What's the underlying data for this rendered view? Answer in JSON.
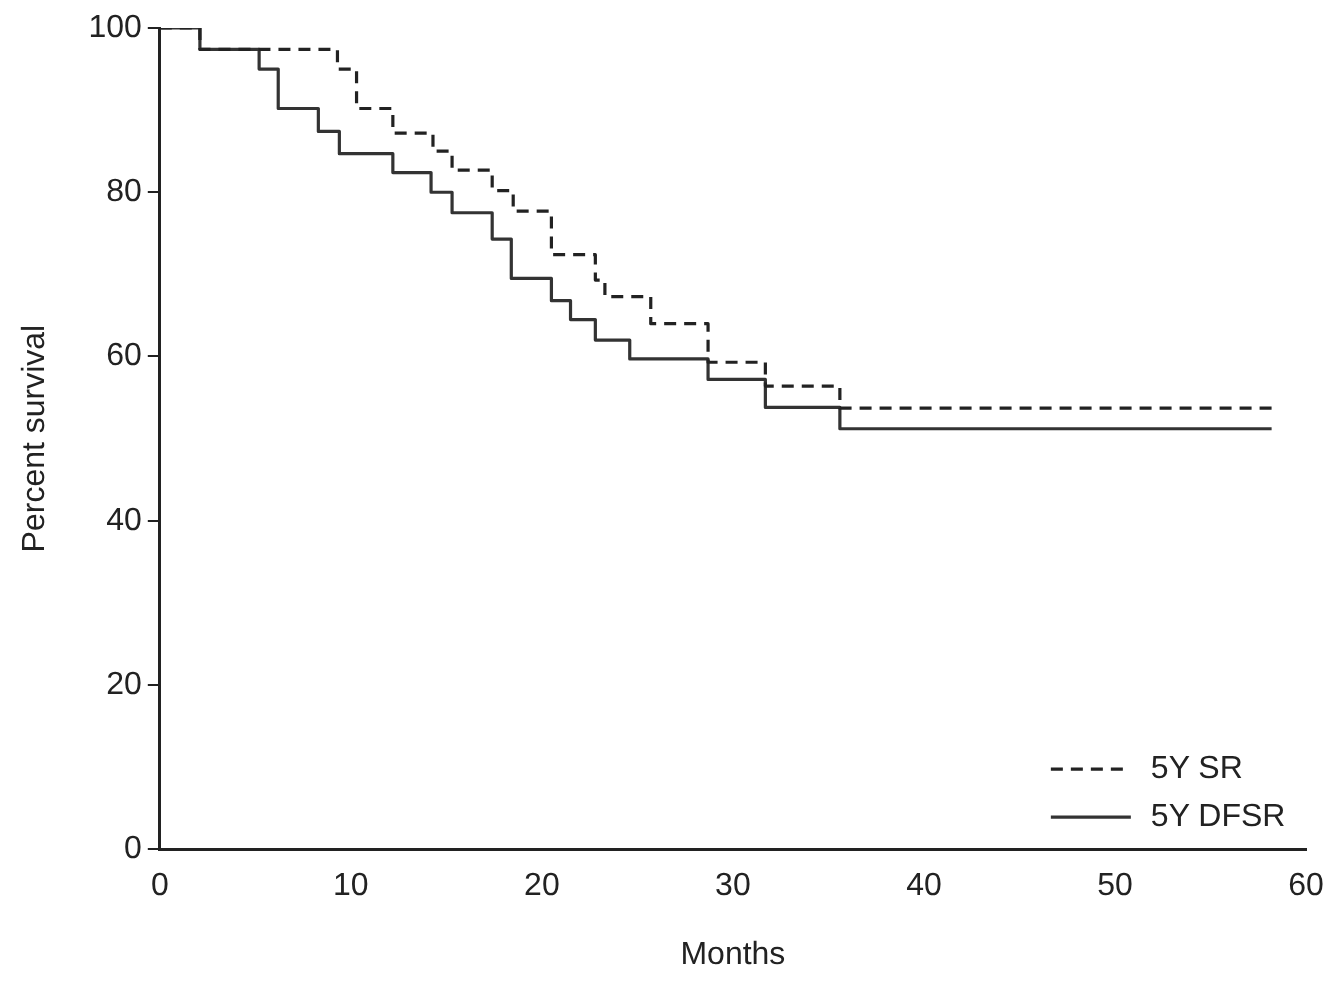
{
  "chart_data": {
    "type": "step",
    "xlabel": "Months",
    "ylabel": "Percent survival",
    "xlim": [
      0,
      60
    ],
    "xticks": [
      0,
      10,
      20,
      30,
      40,
      50,
      60
    ],
    "ylim": [
      0,
      100
    ],
    "yticks": [
      0,
      20,
      40,
      60,
      80,
      100
    ],
    "grid": false,
    "legend": "bottom right",
    "marker": "none",
    "series": [
      {
        "name": "5Y SR",
        "color": "#222222",
        "line_style": "dashed",
        "x": [
          0,
          2.1,
          9.3,
          10.3,
          12.2,
          14.3,
          15.3,
          17.4,
          18.5,
          20.5,
          22.8,
          23.3,
          25.7,
          28.7,
          31.7,
          35.6,
          58.2
        ],
        "values": [
          100,
          97.4,
          95,
          90.2,
          87.2,
          85,
          82.7,
          80.2,
          77.7,
          72.4,
          69.3,
          67.3,
          64,
          59.3,
          56.4,
          53.7,
          53.7
        ]
      },
      {
        "name": "5Y DFSR",
        "color": "#333333",
        "line_style": "solid",
        "x": [
          0,
          2.1,
          5.2,
          6.2,
          8.3,
          9.4,
          12.2,
          14.2,
          15.3,
          17.4,
          18.4,
          20.5,
          21.5,
          22.8,
          24.6,
          28.7,
          31.7,
          35.6,
          58.2
        ],
        "values": [
          100,
          97.4,
          95,
          90.2,
          87.4,
          84.7,
          82.4,
          80,
          77.5,
          74.3,
          69.5,
          66.8,
          64.5,
          62,
          59.7,
          57.2,
          53.8,
          51.2,
          51.2
        ]
      }
    ]
  }
}
